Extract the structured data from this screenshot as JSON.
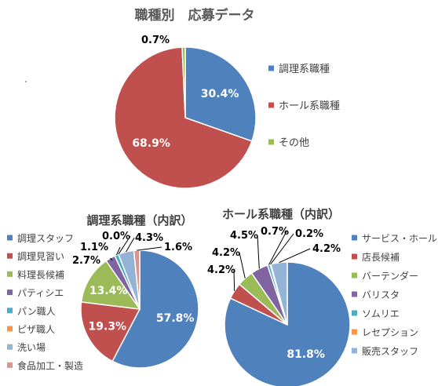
{
  "chart_data": [
    {
      "type": "pie",
      "title": "職種別　応募データ",
      "categories": [
        "調理系職種",
        "ホール系職種",
        "その他"
      ],
      "values": [
        30.4,
        68.9,
        0.7
      ],
      "labels": [
        "30.4%",
        "68.9%",
        "0.7%"
      ],
      "colors": [
        "#4f81bd",
        "#c0504d",
        "#9bbb59"
      ],
      "legend": "right"
    },
    {
      "type": "pie",
      "title": "調理系職種（内訳）",
      "categories": [
        "調理スタッフ",
        "調理見習い",
        "料理長候補",
        "パティシエ",
        "パン職人",
        "ピザ職人",
        "洗い場",
        "食品加工・製造"
      ],
      "values": [
        57.8,
        19.3,
        13.4,
        2.7,
        1.1,
        0.0,
        4.3,
        1.6
      ],
      "labels": [
        "57.8%",
        "19.3%",
        "13.4%",
        "2.7%",
        "1.1%",
        "0.0%",
        "4.3%",
        "1.6%"
      ],
      "colors": [
        "#4f81bd",
        "#c0504d",
        "#9bbb59",
        "#8064a2",
        "#4bacc6",
        "#f79646",
        "#95b3d7",
        "#d99694"
      ],
      "legend": "left"
    },
    {
      "type": "pie",
      "title": "ホール系職種（内訳）",
      "categories": [
        "サービス・ホール",
        "店長候補",
        "バーテンダー",
        "バリスタ",
        "ソムリエ",
        "レセプション",
        "販売スタッフ"
      ],
      "values": [
        81.8,
        4.2,
        4.2,
        4.5,
        0.7,
        0.2,
        4.2
      ],
      "labels": [
        "81.8%",
        "4.2%",
        "4.2%",
        "4.5%",
        "0.7%",
        "0.2%",
        "4.2%"
      ],
      "colors": [
        "#4f81bd",
        "#c0504d",
        "#9bbb59",
        "#8064a2",
        "#4bacc6",
        "#f79646",
        "#95b3d7"
      ],
      "legend": "right"
    }
  ]
}
